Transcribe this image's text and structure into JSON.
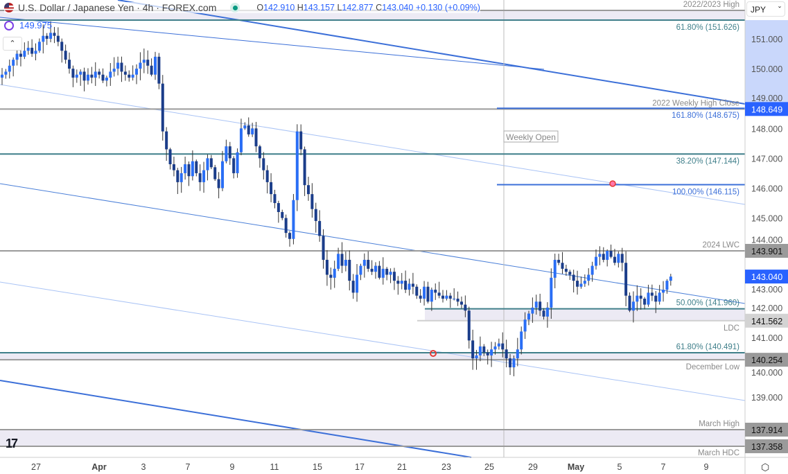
{
  "header": {
    "title": "U.S. Dollar / Japanese Yen · 4h · FOREX.com",
    "o_label": "O",
    "o": "142.910",
    "h_label": "H",
    "h": "143.157",
    "l_label": "L",
    "l": "142.877",
    "c_label": "C",
    "c": "143.040",
    "change": "+0.130 (+0.09%)",
    "indicator_value": "149.975",
    "currency": "JPY"
  },
  "colors": {
    "up": "#2a6ef5",
    "down": "#1b3d8a",
    "teal": "#3f7f8a",
    "gray": "#9a9a9a",
    "blue_line": "#3b6fd8",
    "band": "#eceaf4",
    "accent": "#2962ff"
  },
  "chart_data": {
    "type": "candlestick",
    "ylim": [
      136.8,
      152.35
    ],
    "y_ticks": [
      151,
      150,
      149,
      148,
      147,
      146,
      145,
      144,
      143,
      142,
      141,
      140,
      139
    ],
    "x_ticks": [
      "27",
      "Apr",
      "3",
      "7",
      "9",
      "11",
      "15",
      "17",
      "21",
      "23",
      "25",
      "29",
      "May",
      "5",
      "7",
      "9"
    ],
    "close": [
      149.8,
      149.9,
      150.1,
      150.3,
      150.5,
      150.4,
      150.6,
      150.7,
      150.5,
      150.6,
      150.9,
      151.1,
      151.0,
      151.2,
      151.1,
      150.9,
      150.6,
      150.3,
      150.0,
      149.7,
      149.8,
      149.9,
      149.6,
      149.8,
      149.7,
      149.9,
      149.8,
      149.6,
      149.7,
      149.9,
      150.0,
      150.2,
      149.9,
      149.8,
      149.7,
      149.8,
      150.0,
      150.2,
      150.3,
      150.1,
      149.8,
      150.4,
      149.5,
      147.9,
      147.3,
      146.8,
      146.6,
      146.2,
      146.5,
      146.8,
      146.4,
      146.9,
      146.5,
      146.2,
      146.6,
      147.0,
      146.7,
      146.3,
      146.0,
      146.9,
      147.4,
      147.0,
      146.5,
      147.2,
      148.0,
      148.1,
      147.8,
      148.0,
      147.4,
      147.0,
      146.6,
      146.2,
      145.8,
      145.5,
      145.2,
      145.0,
      144.5,
      144.3,
      145.6,
      147.9,
      147.3,
      146.1,
      145.8,
      145.3,
      144.9,
      144.4,
      143.6,
      143.1,
      143.0,
      143.3,
      143.8,
      143.4,
      143.6,
      142.9,
      142.5,
      143.1,
      143.4,
      143.6,
      143.3,
      143.2,
      143.4,
      143.0,
      143.3,
      143.1,
      143.2,
      142.9,
      142.8,
      142.9,
      142.6,
      142.8,
      142.7,
      142.4,
      142.3,
      142.7,
      142.2,
      142.6,
      142.5,
      142.4,
      142.3,
      142.4,
      142.3,
      142.3,
      142.2,
      142.1,
      141.9,
      140.9,
      140.3,
      140.4,
      140.7,
      140.5,
      140.4,
      140.6,
      140.7,
      140.8,
      140.6,
      140.3,
      140.0,
      140.3,
      140.6,
      141.2,
      141.6,
      141.8,
      142.0,
      142.2,
      141.9,
      141.7,
      142.0,
      143.0,
      143.6,
      143.5,
      143.3,
      143.2,
      143.1,
      142.9,
      142.7,
      142.8,
      142.9,
      143.1,
      143.4,
      143.7,
      143.8,
      143.6,
      143.9,
      143.7,
      143.5,
      143.8,
      143.5,
      142.4,
      141.9,
      142.2,
      142.4,
      142.3,
      142.1,
      142.5,
      142.4,
      142.2,
      142.5,
      142.6,
      142.9,
      143.04
    ],
    "levels": [
      {
        "price": 151.95,
        "label": "2022/2023 High",
        "style": "gray"
      },
      {
        "price": 151.626,
        "label": "61.80% (151.626)",
        "style": "teal"
      },
      {
        "price": 148.649,
        "label": "2022 Weekly High Close",
        "style": "gray",
        "tag": "148.649",
        "tag_style": "blue"
      },
      {
        "price": 148.675,
        "label": "161.80% (148.675)",
        "style": "blue",
        "partial": true
      },
      {
        "price": 147.144,
        "label": "38.20% (147.144)",
        "style": "teal"
      },
      {
        "price": 146.115,
        "label": "100.00% (146.115)",
        "style": "blue",
        "partial": true
      },
      {
        "price": 143.901,
        "label": "2024 LWC",
        "style": "gray",
        "tag": "143.901",
        "tag_style": "gray"
      },
      {
        "price": 141.96,
        "label": "50.00% (141.960)",
        "style": "teal",
        "partial": true
      },
      {
        "price": 141.562,
        "label": "LDC",
        "style": "lightgray",
        "tag": "141.562",
        "tag_style": "light",
        "partial": true
      },
      {
        "price": 140.491,
        "label": "61.80% (140.491)",
        "style": "teal"
      },
      {
        "price": 140.254,
        "label": "December Low",
        "style": "gray",
        "tag": "140.254",
        "tag_style": "gray"
      },
      {
        "price": 137.914,
        "label": "March High",
        "style": "gray",
        "tag": "137.914",
        "tag_style": "gray"
      },
      {
        "price": 137.358,
        "label": "March HDC",
        "style": "gray",
        "tag": "137.358",
        "tag_style": "gray"
      }
    ],
    "last_price_tag": "143.040",
    "annotation": "Weekly Open"
  }
}
